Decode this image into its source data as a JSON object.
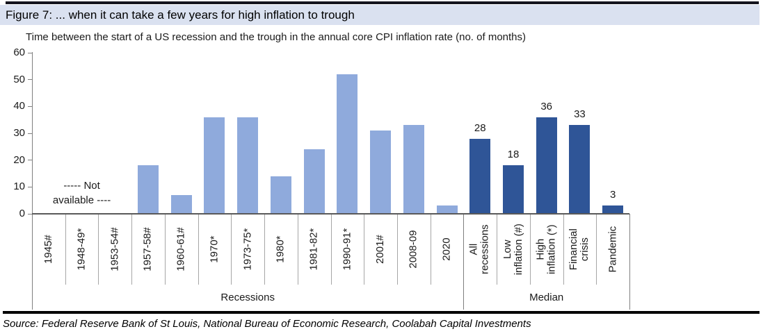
{
  "header": {
    "title": "Figure 7: ... when it can take a few years for high inflation to trough"
  },
  "chart_data": {
    "type": "bar",
    "title": "Time between the start of a US recession and the trough in the annual core CPI inflation rate (no. of months)",
    "xlabel": "",
    "ylabel": "",
    "ylim": [
      0,
      60
    ],
    "yticks": [
      0,
      10,
      20,
      30,
      40,
      50,
      60
    ],
    "grid": false,
    "annotation": "----- Not\navailable ----",
    "annotation_note": "applies to 1945#, 1948-49*, 1953-54# which have no data",
    "groups": [
      {
        "label": "Recessions",
        "bar_color": "#8faadc",
        "show_value_labels": false,
        "bars": [
          {
            "category": "1945#",
            "value": null
          },
          {
            "category": "1948-49*",
            "value": null
          },
          {
            "category": "1953-54#",
            "value": null
          },
          {
            "category": "1957-58#",
            "value": 18
          },
          {
            "category": "1960-61#",
            "value": 7
          },
          {
            "category": "1970*",
            "value": 36
          },
          {
            "category": "1973-75*",
            "value": 36
          },
          {
            "category": "1980*",
            "value": 14
          },
          {
            "category": "1981-82*",
            "value": 24
          },
          {
            "category": "1990-91*",
            "value": 52
          },
          {
            "category": "2001#",
            "value": 31
          },
          {
            "category": "2008-09",
            "value": 33
          },
          {
            "category": "2020",
            "value": 3
          }
        ]
      },
      {
        "label": "Median",
        "bar_color": "#2f5597",
        "show_value_labels": true,
        "bars": [
          {
            "category": "All\nrecessions",
            "value": 28
          },
          {
            "category": "Low\ninflation (#)",
            "value": 18
          },
          {
            "category": "High\ninflation (*)",
            "value": 36
          },
          {
            "category": "Financial\ncrisis",
            "value": 33
          },
          {
            "category": "Pandemic",
            "value": 3
          }
        ]
      }
    ],
    "colors": {
      "recessions_bars": "#8faadc",
      "median_bars": "#2f5597",
      "title_band_bg": "#dae1f0",
      "axis_line": "#7f7f7f",
      "category_separator": "#a6a6a6"
    }
  },
  "footer": {
    "source": "Source: Federal Reserve Bank of St Louis, National Bureau of Economic Research, Coolabah Capital Investments"
  }
}
